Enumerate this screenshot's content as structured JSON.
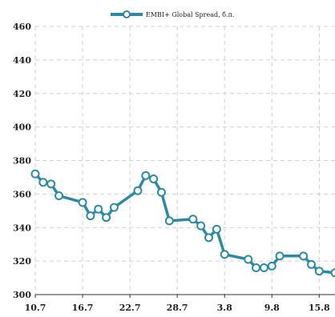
{
  "chart_data": {
    "type": "line",
    "legend": {
      "position": "top-center"
    },
    "grid": true,
    "colors": {
      "series": "#2b8aa8",
      "marker_fill": "#ffffff",
      "grid": "#d0d0d0"
    },
    "ylim": [
      300,
      460
    ],
    "yticks": [
      300,
      320,
      340,
      360,
      380,
      400,
      420,
      440,
      460
    ],
    "xticks": [
      {
        "label": "10.7",
        "day": 0
      },
      {
        "label": "16.7",
        "day": 6
      },
      {
        "label": "22.7",
        "day": 12
      },
      {
        "label": "28.7",
        "day": 18
      },
      {
        "label": "3.8",
        "day": 24
      },
      {
        "label": "9.8",
        "day": 30
      },
      {
        "label": "15.8",
        "day": 36
      }
    ],
    "xlim": [
      0,
      38
    ],
    "series": [
      {
        "name": "EMBI+ Global Spread, б.п.",
        "x": [
          0,
          1,
          2,
          3,
          6,
          7,
          8,
          9,
          10,
          13,
          14,
          15,
          16,
          17,
          20,
          21,
          22,
          23,
          24,
          27,
          28,
          29,
          30,
          31,
          34,
          35,
          36,
          38
        ],
        "values": [
          372,
          367,
          366,
          359,
          355,
          347,
          351,
          346,
          352,
          362,
          371,
          369,
          361,
          344,
          345,
          341,
          334,
          339,
          324,
          321,
          316,
          316,
          317,
          323,
          323,
          318,
          314,
          313
        ]
      }
    ]
  }
}
